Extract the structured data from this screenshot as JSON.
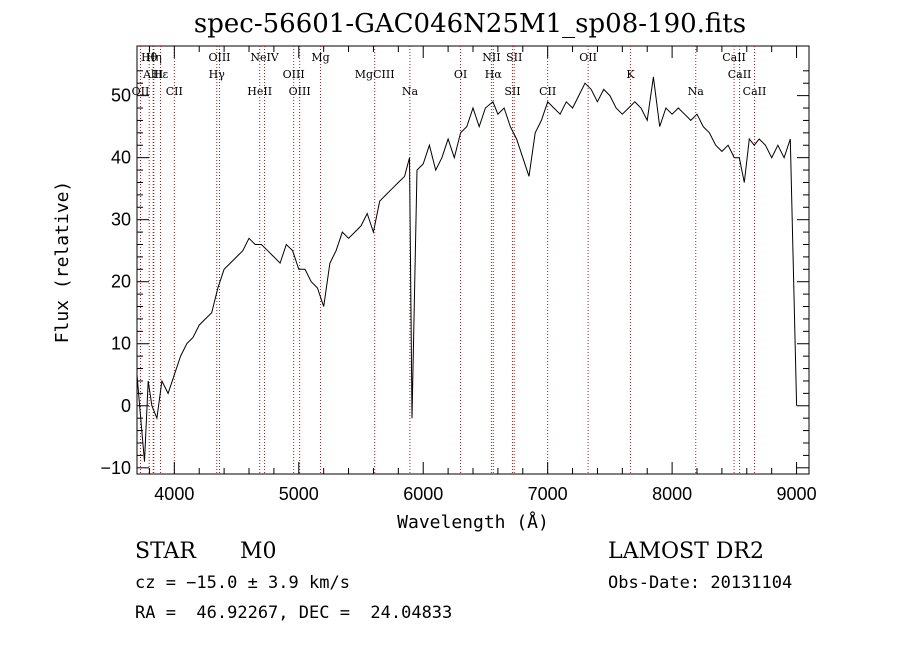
{
  "chart_data": {
    "type": "line",
    "title": "spec-56601-GAC046N25M1_sp08-190.fits",
    "xlabel": "Wavelength (Å)",
    "ylabel": "Flux (relative)",
    "xlim": [
      3700,
      9100
    ],
    "ylim": [
      -11,
      58
    ],
    "xticks": [
      4000,
      5000,
      6000,
      7000,
      8000,
      9000
    ],
    "yticks": [
      -10,
      0,
      10,
      20,
      30,
      40,
      50
    ],
    "grid": false,
    "series": [
      {
        "x": [
          3700,
          3730,
          3760,
          3790,
          3820,
          3860,
          3900,
          3950,
          4000,
          4050,
          4100,
          4150,
          4200,
          4250,
          4300,
          4350,
          4400,
          4450,
          4500,
          4550,
          4600,
          4650,
          4700,
          4750,
          4800,
          4850,
          4900,
          4950,
          5000,
          5050,
          5100,
          5150,
          5200,
          5250,
          5300,
          5350,
          5400,
          5450,
          5500,
          5550,
          5600,
          5650,
          5700,
          5750,
          5800,
          5850,
          5890,
          5910,
          5950,
          6000,
          6050,
          6100,
          6150,
          6200,
          6250,
          6300,
          6350,
          6400,
          6450,
          6500,
          6560,
          6600,
          6650,
          6700,
          6750,
          6800,
          6850,
          6900,
          6950,
          7000,
          7050,
          7100,
          7150,
          7200,
          7250,
          7300,
          7350,
          7400,
          7450,
          7500,
          7550,
          7600,
          7650,
          7700,
          7750,
          7800,
          7850,
          7900,
          7950,
          8000,
          8050,
          8100,
          8150,
          8200,
          8250,
          8300,
          8350,
          8400,
          8450,
          8500,
          8540,
          8580,
          8620,
          8660,
          8700,
          8750,
          8800,
          8850,
          8900,
          8950,
          9000
        ],
        "values": [
          5,
          -2,
          -9,
          4,
          0,
          -2,
          4,
          2,
          5,
          8,
          10,
          11,
          13,
          14,
          15,
          19,
          22,
          23,
          24,
          25,
          27,
          26,
          26,
          25,
          24,
          23,
          26,
          25,
          22,
          22,
          20,
          19,
          16,
          23,
          25,
          28,
          27,
          28,
          29,
          31,
          28,
          33,
          34,
          35,
          36,
          37,
          40,
          -2,
          38,
          39,
          42,
          38,
          40,
          43,
          40,
          44,
          45,
          48,
          45,
          48,
          49,
          47,
          48,
          45,
          43,
          40,
          37,
          44,
          46,
          49,
          48,
          47,
          49,
          48,
          50,
          52,
          51,
          49,
          51,
          50,
          48,
          47,
          48,
          49,
          48,
          46,
          53,
          45,
          48,
          47,
          48,
          47,
          46,
          47,
          45,
          44,
          42,
          41,
          42,
          40,
          40,
          36,
          43,
          42,
          43,
          42,
          40,
          42,
          40,
          43,
          0
        ]
      }
    ],
    "lines": [
      {
        "label": "Hθ",
        "x": 3798
      },
      {
        "label": "AlII",
        "x": 3830
      },
      {
        "label": "OII",
        "x": 3728
      },
      {
        "label": "Hη",
        "x": 3835
      },
      {
        "label": "Hε",
        "x": 3889
      },
      {
        "label": "CII",
        "x": 4000
      },
      {
        "label": "OIII",
        "x": 4363
      },
      {
        "label": "Hγ",
        "x": 4341
      },
      {
        "label": "HeII",
        "x": 4686
      },
      {
        "label": "NeIV",
        "x": 4725
      },
      {
        "label": "OIII",
        "x": 4959
      },
      {
        "label": "OIII",
        "x": 5007
      },
      {
        "label": "Mg",
        "x": 5175
      },
      {
        "label": "MgCIII",
        "x": 5610
      },
      {
        "label": "Na",
        "x": 5893
      },
      {
        "label": "NII",
        "x": 6548
      },
      {
        "label": "Hα",
        "x": 6563
      },
      {
        "label": "SII",
        "x": 6717
      },
      {
        "label": "SII",
        "x": 6731
      },
      {
        "label": "OI",
        "x": 6300
      },
      {
        "label": "CII",
        "x": 7000
      },
      {
        "label": "OII",
        "x": 7325
      },
      {
        "label": "K",
        "x": 7665
      },
      {
        "label": "Na",
        "x": 8190
      },
      {
        "label": "CaII",
        "x": 8498
      },
      {
        "label": "CaII",
        "x": 8542
      },
      {
        "label": "CaII",
        "x": 8662
      }
    ]
  },
  "info": {
    "class_label": "STAR",
    "subclass": "M0",
    "cz": "cz = −15.0 ± 3.9 km/s",
    "coords": "RA =  46.92267, DEC =  24.04833",
    "survey": "LAMOST DR2",
    "obs_date": "Obs-Date: 20131104"
  }
}
